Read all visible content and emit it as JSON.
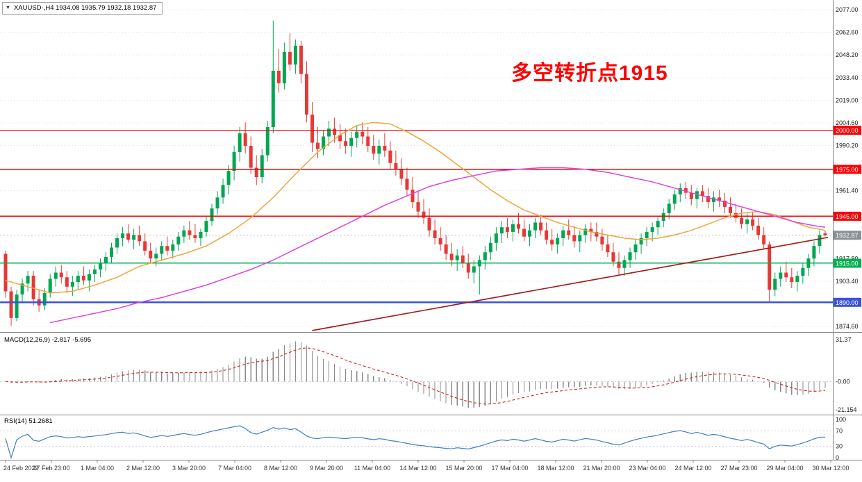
{
  "header": {
    "symbol_info": "XAUUSD-,H4 1934.08 1935.79 1932.18 1932.87"
  },
  "icons": {
    "collapse_arrow": "▼"
  },
  "annotation": {
    "text": "多空转折点1915",
    "color": "#FF0000"
  },
  "indicators": {
    "macd": {
      "label": "MACD(12,26,9) -2.817 -5.695",
      "fast": 12,
      "slow": 26,
      "signal": 9,
      "value": -2.817,
      "signal_value": -5.695
    },
    "rsi": {
      "label": "RSI(14) 51.2681",
      "period": 14,
      "value": 51.2681,
      "levels": [
        70,
        30
      ]
    }
  },
  "axes": {
    "price_ticks": [
      {
        "label": "2077.00",
        "value": 2077.0
      },
      {
        "label": "2062.60",
        "value": 2062.6
      },
      {
        "label": "2048.20",
        "value": 2048.2
      },
      {
        "label": "2033.40",
        "value": 2033.4
      },
      {
        "label": "2019.00",
        "value": 2019.0
      },
      {
        "label": "2004.60",
        "value": 2004.6
      },
      {
        "label": "1990.20",
        "value": 1990.2
      },
      {
        "label": "1961.40",
        "value": 1961.4
      },
      {
        "label": "1917.80",
        "value": 1917.8
      },
      {
        "label": "1903.40",
        "value": 1903.4
      },
      {
        "label": "1874.60",
        "value": 1874.6
      }
    ],
    "macd_ticks": [
      {
        "label": "31.37",
        "value": 31.37
      },
      {
        "label": "-0.00",
        "value": 0
      },
      {
        "label": "-21.154",
        "value": -21.154
      }
    ],
    "rsi_ticks": [
      {
        "label": "100",
        "value": 100
      },
      {
        "label": "70",
        "value": 70
      },
      {
        "label": "30",
        "value": 30
      },
      {
        "label": "0",
        "value": 0
      }
    ],
    "time_labels": [
      "24 Feb 2022",
      "27 Feb 23:00",
      "1 Mar 04:00",
      "2 Mar 12:00",
      "3 Mar 20:00",
      "7 Mar 04:00",
      "8 Mar 12:00",
      "9 Mar 20:00",
      "11 Mar 04:00",
      "14 Mar 12:00",
      "15 Mar 20:00",
      "17 Mar 04:00",
      "18 Mar 12:00",
      "21 Mar 20:00",
      "23 Mar 04:00",
      "24 Mar 12:00",
      "27 Mar 23:00",
      "29 Mar 04:00",
      "30 Mar 12:00"
    ]
  },
  "chart_data": {
    "type": "candlestick",
    "symbol": "XAUUSD-",
    "timeframe": "H4",
    "price_axis": {
      "min": 1874.6,
      "max": 2077.0
    },
    "macd_axis": {
      "min": -21.154,
      "max": 31.37
    },
    "rsi_axis": {
      "min": 0,
      "max": 100
    },
    "current_price": {
      "label": "1932.87",
      "value": 1932.87,
      "box_color": "#8C9196"
    },
    "levels": [
      {
        "label": "2000.00",
        "value": 2000,
        "color": "#FF0000",
        "width": 1.3
      },
      {
        "label": "1975.00",
        "value": 1975,
        "color": "#FF0000",
        "width": 1.3
      },
      {
        "label": "1945.00",
        "value": 1945,
        "color": "#FF0000",
        "width": 1.3
      },
      {
        "label": "1915.00",
        "value": 1915,
        "color": "#00B050",
        "width": 1.5
      },
      {
        "label": "1890.00",
        "value": 1890,
        "color": "#3A52DB",
        "width": 2.2
      }
    ],
    "overlays": {
      "ma_fast": {
        "color": "#EFA53A",
        "points": [
          [
            0,
            1904
          ],
          [
            4,
            1900
          ],
          [
            8,
            1896
          ],
          [
            12,
            1897
          ],
          [
            16,
            1901
          ],
          [
            20,
            1906
          ],
          [
            24,
            1913
          ],
          [
            28,
            1917
          ],
          [
            32,
            1921
          ],
          [
            36,
            1926
          ],
          [
            40,
            1934
          ],
          [
            44,
            1944
          ],
          [
            48,
            1957
          ],
          [
            52,
            1972
          ],
          [
            56,
            1986
          ],
          [
            60,
            1997
          ],
          [
            63,
            2003
          ],
          [
            66,
            2005
          ],
          [
            69,
            2004
          ],
          [
            72,
            1999
          ],
          [
            75,
            1993
          ],
          [
            78,
            1986
          ],
          [
            81,
            1978
          ],
          [
            84,
            1970
          ],
          [
            87,
            1962
          ],
          [
            90,
            1955
          ],
          [
            93,
            1949
          ],
          [
            96,
            1945
          ],
          [
            99,
            1941
          ],
          [
            102,
            1938
          ],
          [
            105,
            1935
          ],
          [
            108,
            1933
          ],
          [
            111,
            1931
          ],
          [
            114,
            1930
          ],
          [
            117,
            1931
          ],
          [
            120,
            1933
          ],
          [
            123,
            1936
          ],
          [
            126,
            1940
          ],
          [
            129,
            1944
          ],
          [
            132,
            1947
          ],
          [
            135,
            1948
          ],
          [
            138,
            1946
          ],
          [
            141,
            1942
          ],
          [
            144,
            1938
          ],
          [
            147,
            1936
          ]
        ]
      },
      "ma_slow": {
        "color": "#DD44DD",
        "points": [
          [
            8,
            1877
          ],
          [
            12,
            1880
          ],
          [
            16,
            1883
          ],
          [
            20,
            1886
          ],
          [
            24,
            1890
          ],
          [
            28,
            1893
          ],
          [
            32,
            1897
          ],
          [
            36,
            1901
          ],
          [
            40,
            1906
          ],
          [
            44,
            1911
          ],
          [
            48,
            1917
          ],
          [
            52,
            1924
          ],
          [
            56,
            1931
          ],
          [
            60,
            1938
          ],
          [
            64,
            1945
          ],
          [
            68,
            1952
          ],
          [
            72,
            1958
          ],
          [
            76,
            1964
          ],
          [
            80,
            1968
          ],
          [
            84,
            1971
          ],
          [
            88,
            1974
          ],
          [
            92,
            1975
          ],
          [
            96,
            1976
          ],
          [
            100,
            1976
          ],
          [
            104,
            1975
          ],
          [
            108,
            1973
          ],
          [
            112,
            1970
          ],
          [
            116,
            1967
          ],
          [
            120,
            1963
          ],
          [
            124,
            1959
          ],
          [
            128,
            1955
          ],
          [
            132,
            1951
          ],
          [
            136,
            1947
          ],
          [
            139,
            1944
          ],
          [
            142,
            1941
          ],
          [
            145,
            1939
          ],
          [
            147,
            1938
          ]
        ]
      },
      "trendline": {
        "color": "#A02020",
        "from": [
          55,
          1872
        ],
        "to": [
          147.5,
          1931.5
        ]
      }
    },
    "colors": {
      "up": "#00A651",
      "down": "#E53935",
      "grid": "#E3E3E3",
      "macd_hist": "#8A8A8A",
      "macd_signal": "#CC2222",
      "rsi": "#3E7FBF"
    },
    "ohlc": [
      [
        1921,
        1923,
        1893,
        1897
      ],
      [
        1897,
        1900,
        1875,
        1880
      ],
      [
        1880,
        1898,
        1878,
        1895
      ],
      [
        1895,
        1905,
        1890,
        1902
      ],
      [
        1902,
        1910,
        1897,
        1907
      ],
      [
        1907,
        1910,
        1888,
        1892
      ],
      [
        1892,
        1898,
        1884,
        1888
      ],
      [
        1888,
        1899,
        1885,
        1896
      ],
      [
        1896,
        1908,
        1893,
        1905
      ],
      [
        1905,
        1913,
        1900,
        1909
      ],
      [
        1909,
        1914,
        1902,
        1906
      ],
      [
        1906,
        1910,
        1896,
        1900
      ],
      [
        1900,
        1907,
        1894,
        1903
      ],
      [
        1903,
        1910,
        1898,
        1907
      ],
      [
        1907,
        1913,
        1901,
        1904
      ],
      [
        1904,
        1911,
        1897,
        1908
      ],
      [
        1908,
        1914,
        1903,
        1911
      ],
      [
        1911,
        1918,
        1906,
        1915
      ],
      [
        1915,
        1922,
        1910,
        1919
      ],
      [
        1919,
        1928,
        1915,
        1925
      ],
      [
        1925,
        1934,
        1921,
        1931
      ],
      [
        1931,
        1938,
        1926,
        1934
      ],
      [
        1934,
        1940,
        1928,
        1930
      ],
      [
        1930,
        1937,
        1924,
        1933
      ],
      [
        1933,
        1939,
        1926,
        1929
      ],
      [
        1929,
        1934,
        1920,
        1923
      ],
      [
        1923,
        1928,
        1915,
        1918
      ],
      [
        1918,
        1925,
        1913,
        1921
      ],
      [
        1921,
        1929,
        1917,
        1926
      ],
      [
        1926,
        1932,
        1920,
        1923
      ],
      [
        1923,
        1930,
        1918,
        1927
      ],
      [
        1927,
        1935,
        1923,
        1932
      ],
      [
        1932,
        1939,
        1928,
        1936
      ],
      [
        1936,
        1942,
        1930,
        1933
      ],
      [
        1933,
        1940,
        1928,
        1931
      ],
      [
        1931,
        1937,
        1926,
        1935
      ],
      [
        1935,
        1945,
        1932,
        1942
      ],
      [
        1942,
        1953,
        1939,
        1950
      ],
      [
        1950,
        1961,
        1946,
        1957
      ],
      [
        1957,
        1969,
        1953,
        1965
      ],
      [
        1965,
        1978,
        1959,
        1974
      ],
      [
        1974,
        1990,
        1968,
        1986
      ],
      [
        1986,
        2002,
        1980,
        1998
      ],
      [
        1998,
        2005,
        1985,
        1990
      ],
      [
        1990,
        1996,
        1972,
        1976
      ],
      [
        1976,
        1984,
        1965,
        1970
      ],
      [
        1970,
        1988,
        1966,
        1984
      ],
      [
        1984,
        2006,
        1980,
        2002
      ],
      [
        2002,
        2070,
        1998,
        2038
      ],
      [
        2038,
        2052,
        2024,
        2030
      ],
      [
        2030,
        2056,
        2026,
        2050
      ],
      [
        2050,
        2062,
        2038,
        2042
      ],
      [
        2042,
        2058,
        2036,
        2054
      ],
      [
        2054,
        2057,
        2030,
        2036
      ],
      [
        2036,
        2044,
        2005,
        2010
      ],
      [
        2010,
        2018,
        1986,
        1992
      ],
      [
        1992,
        2002,
        1982,
        1988
      ],
      [
        1988,
        2000,
        1984,
        1996
      ],
      [
        1996,
        2006,
        1990,
        2001
      ],
      [
        2001,
        2008,
        1992,
        1997
      ],
      [
        1997,
        2004,
        1988,
        1993
      ],
      [
        1993,
        2001,
        1985,
        1990
      ],
      [
        1990,
        1999,
        1983,
        1995
      ],
      [
        1995,
        2003,
        1989,
        1999
      ],
      [
        1999,
        2005,
        1991,
        1996
      ],
      [
        1996,
        2002,
        1986,
        1990
      ],
      [
        1990,
        1997,
        1981,
        1985
      ],
      [
        1985,
        1994,
        1978,
        1990
      ],
      [
        1990,
        1998,
        1983,
        1987
      ],
      [
        1987,
        1993,
        1975,
        1979
      ],
      [
        1979,
        1987,
        1971,
        1975
      ],
      [
        1975,
        1982,
        1965,
        1969
      ],
      [
        1969,
        1976,
        1958,
        1962
      ],
      [
        1962,
        1970,
        1950,
        1954
      ],
      [
        1954,
        1961,
        1944,
        1948
      ],
      [
        1948,
        1956,
        1940,
        1944
      ],
      [
        1944,
        1950,
        1932,
        1936
      ],
      [
        1936,
        1943,
        1927,
        1931
      ],
      [
        1931,
        1938,
        1923,
        1927
      ],
      [
        1927,
        1933,
        1917,
        1921
      ],
      [
        1921,
        1928,
        1913,
        1917
      ],
      [
        1917,
        1924,
        1910,
        1920
      ],
      [
        1920,
        1926,
        1912,
        1915
      ],
      [
        1915,
        1921,
        1905,
        1909
      ],
      [
        1909,
        1917,
        1902,
        1913
      ],
      [
        1913,
        1920,
        1895,
        1917
      ],
      [
        1917,
        1926,
        1911,
        1922
      ],
      [
        1922,
        1932,
        1917,
        1928
      ],
      [
        1928,
        1938,
        1923,
        1934
      ],
      [
        1934,
        1942,
        1928,
        1938
      ],
      [
        1938,
        1944,
        1931,
        1935
      ],
      [
        1935,
        1943,
        1929,
        1940
      ],
      [
        1940,
        1947,
        1934,
        1937
      ],
      [
        1937,
        1943,
        1929,
        1932
      ],
      [
        1932,
        1940,
        1926,
        1936
      ],
      [
        1936,
        1944,
        1931,
        1941
      ],
      [
        1941,
        1946,
        1933,
        1936
      ],
      [
        1936,
        1941,
        1927,
        1930
      ],
      [
        1930,
        1937,
        1923,
        1927
      ],
      [
        1927,
        1934,
        1921,
        1931
      ],
      [
        1931,
        1939,
        1926,
        1936
      ],
      [
        1936,
        1943,
        1930,
        1933
      ],
      [
        1933,
        1939,
        1925,
        1929
      ],
      [
        1929,
        1936,
        1922,
        1933
      ],
      [
        1933,
        1940,
        1928,
        1937
      ],
      [
        1937,
        1941,
        1929,
        1935
      ],
      [
        1935,
        1941,
        1929,
        1932
      ],
      [
        1932,
        1937,
        1923,
        1927
      ],
      [
        1927,
        1933,
        1919,
        1922
      ],
      [
        1922,
        1928,
        1913,
        1916
      ],
      [
        1916,
        1922,
        1908,
        1912
      ],
      [
        1912,
        1920,
        1907,
        1917
      ],
      [
        1917,
        1925,
        1912,
        1922
      ],
      [
        1922,
        1930,
        1917,
        1927
      ],
      [
        1927,
        1934,
        1921,
        1931
      ],
      [
        1931,
        1938,
        1926,
        1935
      ],
      [
        1935,
        1941,
        1929,
        1938
      ],
      [
        1938,
        1945,
        1933,
        1942
      ],
      [
        1942,
        1950,
        1938,
        1947
      ],
      [
        1947,
        1956,
        1943,
        1953
      ],
      [
        1953,
        1962,
        1949,
        1959
      ],
      [
        1959,
        1966,
        1954,
        1963
      ],
      [
        1963,
        1967,
        1956,
        1960
      ],
      [
        1960,
        1965,
        1952,
        1956
      ],
      [
        1956,
        1963,
        1950,
        1961
      ],
      [
        1961,
        1965,
        1954,
        1958
      ],
      [
        1958,
        1963,
        1950,
        1954
      ],
      [
        1954,
        1961,
        1948,
        1957
      ],
      [
        1957,
        1962,
        1951,
        1955
      ],
      [
        1955,
        1960,
        1947,
        1951
      ],
      [
        1951,
        1957,
        1944,
        1947
      ],
      [
        1947,
        1953,
        1941,
        1944
      ],
      [
        1944,
        1950,
        1937,
        1940
      ],
      [
        1940,
        1947,
        1934,
        1943
      ],
      [
        1943,
        1948,
        1936,
        1939
      ],
      [
        1939,
        1944,
        1930,
        1933
      ],
      [
        1933,
        1938,
        1924,
        1927
      ],
      [
        1927,
        1929,
        1890,
        1898
      ],
      [
        1898,
        1909,
        1894,
        1905
      ],
      [
        1905,
        1913,
        1900,
        1909
      ],
      [
        1909,
        1916,
        1903,
        1906
      ],
      [
        1906,
        1912,
        1899,
        1903
      ],
      [
        1903,
        1910,
        1897,
        1907
      ],
      [
        1907,
        1915,
        1902,
        1912
      ],
      [
        1912,
        1921,
        1907,
        1918
      ],
      [
        1918,
        1929,
        1913,
        1926
      ],
      [
        1926,
        1936,
        1921,
        1933
      ],
      [
        1934.08,
        1935.79,
        1932.18,
        1932.87
      ]
    ]
  }
}
